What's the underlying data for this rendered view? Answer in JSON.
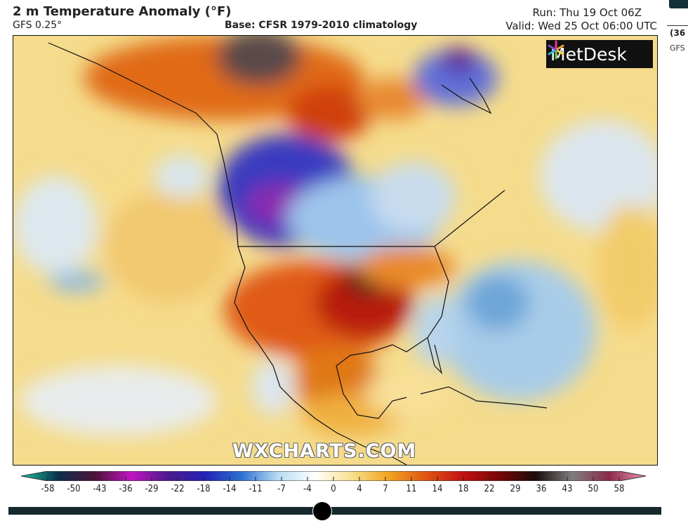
{
  "header": {
    "title": "2 m Temperature Anomaly (°F)",
    "model": "GFS 0.25°",
    "base": "Base: CFSR 1979-2010 climatology",
    "run": "Run: Thu 19 Oct 06Z",
    "valid": "Valid: Wed 25 Oct 06:00 UTC"
  },
  "side_panel": {
    "run_fragment": "(36",
    "model_fragment": "GFS"
  },
  "map": {
    "logo": "MetDesk",
    "watermark": "WXCHARTS.COM",
    "region": "North America"
  },
  "colorbar": {
    "ticks": [
      "-58",
      "-50",
      "-43",
      "-36",
      "-29",
      "-22",
      "-18",
      "-14",
      "-11",
      "-7",
      "-4",
      "0",
      "4",
      "7",
      "11",
      "14",
      "18",
      "22",
      "29",
      "36",
      "43",
      "50",
      "58"
    ],
    "colors": [
      "#19c79e",
      "#0c2f4c",
      "#4a1238",
      "#c015c0",
      "#4d1b8c",
      "#2222b4",
      "#2e70d2",
      "#b8dcf2",
      "#ffffff",
      "#f8e08c",
      "#f0a522",
      "#e05612",
      "#c21212",
      "#7a0606",
      "#1c0c0c",
      "#7e7e7e",
      "#8c2a4a",
      "#f294b8"
    ]
  },
  "timeline": {
    "position": 0.48
  }
}
